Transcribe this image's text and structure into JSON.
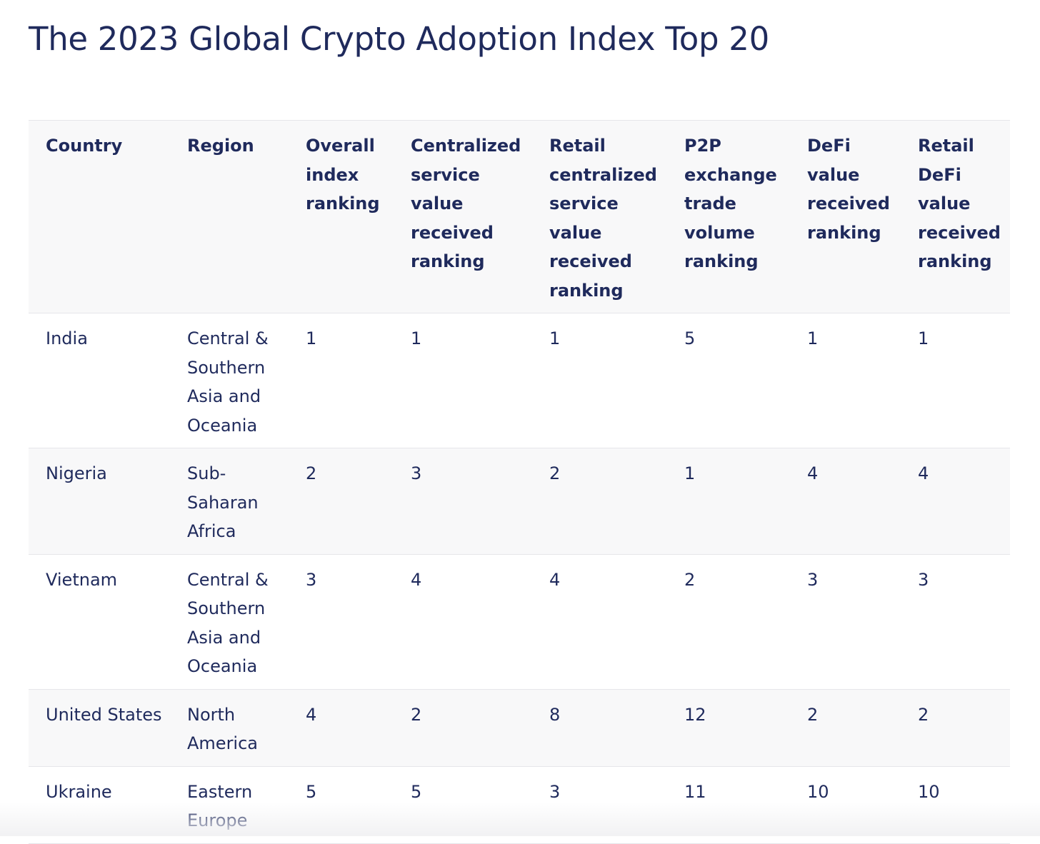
{
  "page": {
    "title": "The 2023 Global Crypto Adoption Index Top 20"
  },
  "table": {
    "headers": {
      "country": "Country",
      "region": "Region",
      "overall": "Overall index ranking",
      "centralized": "Centralized service value received ranking",
      "retail_centralized": "Retail centralized service value received ranking",
      "p2p": "P2P exchange trade volume ranking",
      "defi": "DeFi value received ranking",
      "retail_defi": "Retail DeFi value received ranking"
    },
    "rows": [
      {
        "country": "India",
        "region": "Central & Southern Asia and Oceania",
        "overall": "1",
        "centralized": "1",
        "retail_centralized": "1",
        "p2p": "5",
        "defi": "1",
        "retail_defi": "1"
      },
      {
        "country": "Nigeria",
        "region": "Sub-Saharan Africa",
        "overall": "2",
        "centralized": "3",
        "retail_centralized": "2",
        "p2p": "1",
        "defi": "4",
        "retail_defi": "4"
      },
      {
        "country": "Vietnam",
        "region": "Central & Southern Asia and Oceania",
        "overall": "3",
        "centralized": "4",
        "retail_centralized": "4",
        "p2p": "2",
        "defi": "3",
        "retail_defi": "3"
      },
      {
        "country": "United States",
        "region": "North America",
        "overall": "4",
        "centralized": "2",
        "retail_centralized": "8",
        "p2p": "12",
        "defi": "2",
        "retail_defi": "2"
      },
      {
        "country": "Ukraine",
        "region": "Eastern Europe",
        "overall": "5",
        "centralized": "5",
        "retail_centralized": "3",
        "p2p": "11",
        "defi": "10",
        "retail_defi": "10"
      }
    ]
  },
  "colors": {
    "text": "#1f2a5c",
    "header_bg": "#f8f8f9",
    "stripe_bg": "#f8f8f9",
    "border": "#e6e6ea"
  }
}
